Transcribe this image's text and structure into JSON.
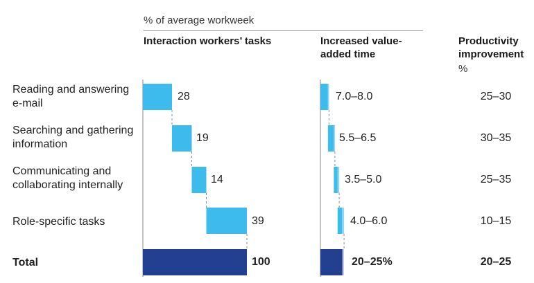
{
  "chart_data": {
    "type": "bar",
    "caption": "% of average workweek",
    "columns": {
      "tasks": "Interaction workers’ tasks",
      "value_added": "Increased value-added time",
      "productivity": "Productivity improvement",
      "productivity_unit": "%"
    },
    "rows": [
      {
        "label": "Reading and answering e-mail",
        "task_share": 28,
        "task_label": "28",
        "value_added": [
          7.0,
          8.0
        ],
        "value_added_label": "7.0–8.0",
        "productivity_label": "25–30"
      },
      {
        "label": "Searching and gathering information",
        "task_share": 19,
        "task_label": "19",
        "value_added": [
          5.5,
          6.5
        ],
        "value_added_label": "5.5–6.5",
        "productivity_label": "30–35"
      },
      {
        "label": "Communicating and collaborating internally",
        "task_share": 14,
        "task_label": "14",
        "value_added": [
          3.5,
          5.0
        ],
        "value_added_label": "3.5–5.0",
        "productivity_label": "25–35"
      },
      {
        "label": "Role-specific tasks",
        "task_share": 39,
        "task_label": "39",
        "value_added": [
          4.0,
          6.0
        ],
        "value_added_label": "4.0–6.0",
        "productivity_label": "10–15"
      }
    ],
    "total": {
      "label": "Total",
      "task_share": 100,
      "task_label": "100",
      "value_added": [
        20,
        25
      ],
      "value_added_label": "20–25%",
      "productivity_label": "20–25"
    },
    "colors": {
      "light_bar": "#3dbbec",
      "light_bar_range": "#8ad6f4",
      "dark_bar": "#233f8f",
      "dark_bar_range": "#7c8cc6",
      "axis": "#888888"
    }
  }
}
